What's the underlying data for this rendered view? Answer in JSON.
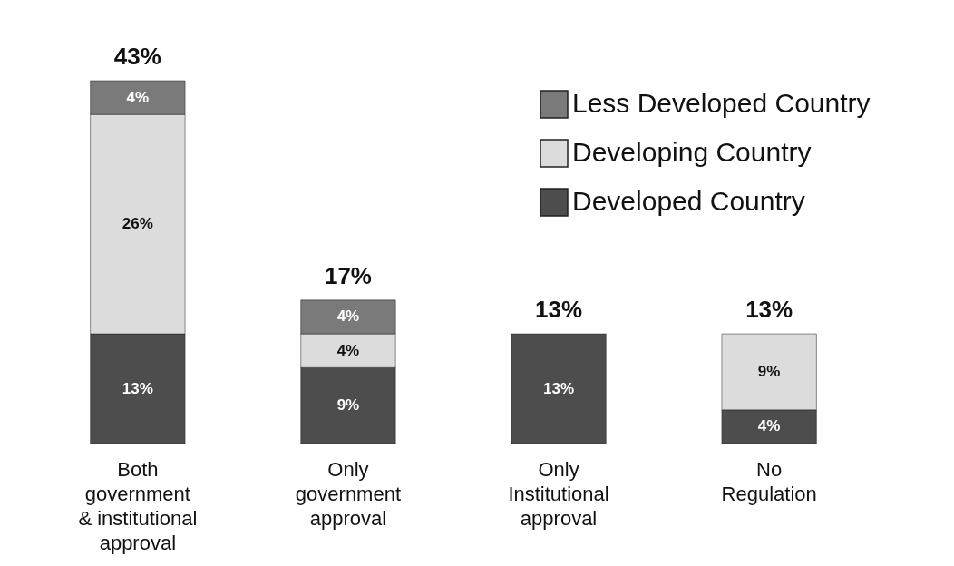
{
  "chart_data": {
    "type": "bar",
    "stacked": true,
    "categories": [
      "Both\ngovernment\n& institutional\napproval",
      "Only\ngovernment\napproval",
      "Only\nInstitutional\napproval",
      "No\nRegulation"
    ],
    "series": [
      {
        "name": "Developed Country",
        "color": "#4d4d4d",
        "values": [
          13,
          9,
          13,
          4
        ],
        "value_labels": [
          "13%",
          "9%",
          "13%",
          "4%"
        ]
      },
      {
        "name": "Developing Country",
        "color": "#dcdcdc",
        "values": [
          26,
          4,
          null,
          9
        ],
        "value_labels": [
          "26%",
          "4%",
          null,
          "9%"
        ]
      },
      {
        "name": "Less Developed Country",
        "color": "#7a7a7a",
        "values": [
          4,
          4,
          null,
          null
        ],
        "value_labels": [
          "4%",
          "4%",
          null,
          null
        ]
      }
    ],
    "totals": [
      "43%",
      "17%",
      "13%",
      "13%"
    ],
    "legend": "top right",
    "tick_labels": "x",
    "grid": false
  }
}
